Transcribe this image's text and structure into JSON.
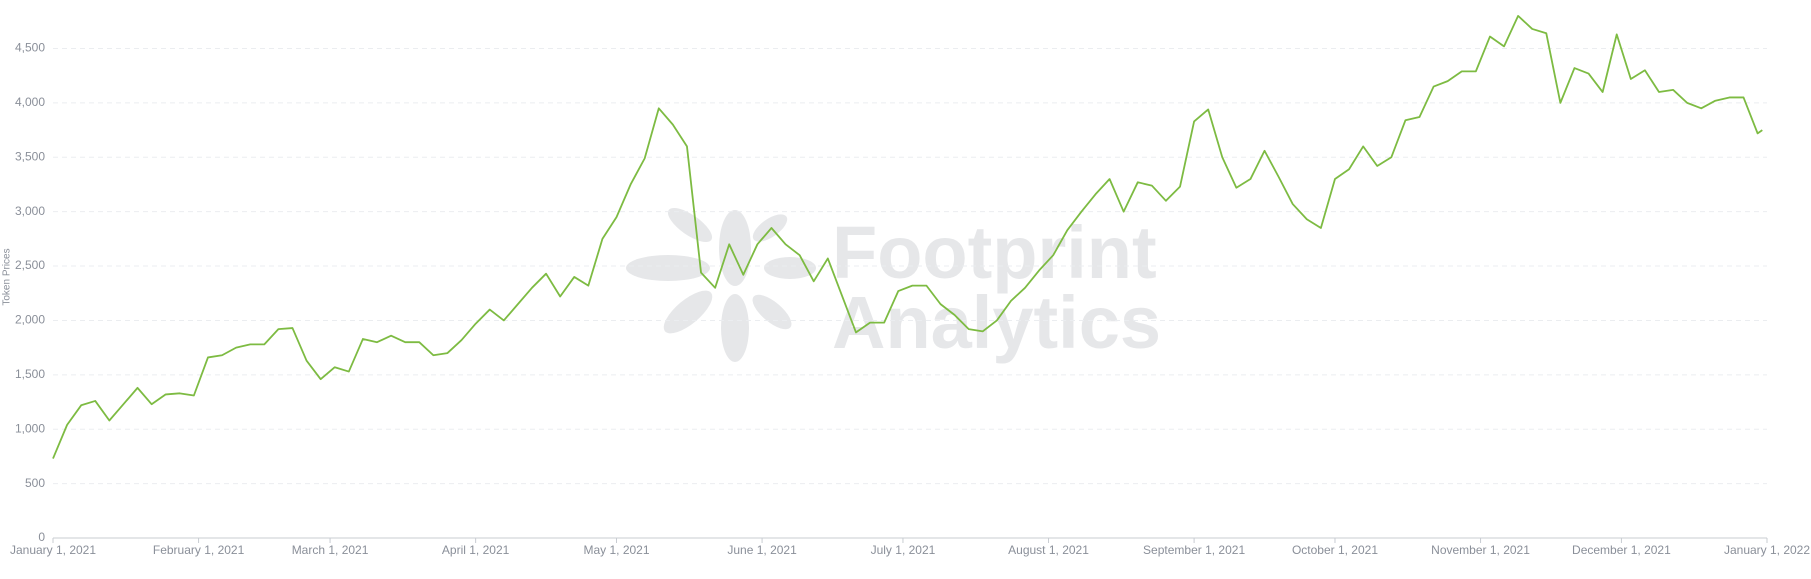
{
  "chart_data": {
    "type": "line",
    "ylabel": "Token Prices",
    "watermark": [
      "Footprint",
      "Analytics"
    ],
    "x": [
      "2021-01-01",
      "2021-01-04",
      "2021-01-07",
      "2021-01-10",
      "2021-01-13",
      "2021-01-16",
      "2021-01-19",
      "2021-01-22",
      "2021-01-25",
      "2021-01-28",
      "2021-01-31",
      "2021-02-03",
      "2021-02-06",
      "2021-02-09",
      "2021-02-12",
      "2021-02-15",
      "2021-02-18",
      "2021-02-21",
      "2021-02-24",
      "2021-02-27",
      "2021-03-02",
      "2021-03-05",
      "2021-03-08",
      "2021-03-11",
      "2021-03-14",
      "2021-03-17",
      "2021-03-20",
      "2021-03-23",
      "2021-03-26",
      "2021-03-29",
      "2021-04-01",
      "2021-04-04",
      "2021-04-07",
      "2021-04-10",
      "2021-04-13",
      "2021-04-16",
      "2021-04-19",
      "2021-04-22",
      "2021-04-25",
      "2021-04-28",
      "2021-05-01",
      "2021-05-04",
      "2021-05-07",
      "2021-05-10",
      "2021-05-13",
      "2021-05-16",
      "2021-05-19",
      "2021-05-22",
      "2021-05-25",
      "2021-05-28",
      "2021-05-31",
      "2021-06-03",
      "2021-06-06",
      "2021-06-09",
      "2021-06-12",
      "2021-06-15",
      "2021-06-18",
      "2021-06-21",
      "2021-06-24",
      "2021-06-27",
      "2021-06-30",
      "2021-07-03",
      "2021-07-06",
      "2021-07-09",
      "2021-07-12",
      "2021-07-15",
      "2021-07-18",
      "2021-07-21",
      "2021-07-24",
      "2021-07-27",
      "2021-07-30",
      "2021-08-02",
      "2021-08-05",
      "2021-08-08",
      "2021-08-11",
      "2021-08-14",
      "2021-08-17",
      "2021-08-20",
      "2021-08-23",
      "2021-08-26",
      "2021-08-29",
      "2021-09-01",
      "2021-09-04",
      "2021-09-07",
      "2021-09-10",
      "2021-09-13",
      "2021-09-16",
      "2021-09-19",
      "2021-09-22",
      "2021-09-25",
      "2021-09-28",
      "2021-10-01",
      "2021-10-04",
      "2021-10-07",
      "2021-10-10",
      "2021-10-13",
      "2021-10-16",
      "2021-10-19",
      "2021-10-22",
      "2021-10-25",
      "2021-10-28",
      "2021-10-31",
      "2021-11-03",
      "2021-11-06",
      "2021-11-09",
      "2021-11-12",
      "2021-11-15",
      "2021-11-18",
      "2021-11-21",
      "2021-11-24",
      "2021-11-27",
      "2021-11-30",
      "2021-12-03",
      "2021-12-06",
      "2021-12-09",
      "2021-12-12",
      "2021-12-15",
      "2021-12-18",
      "2021-12-21",
      "2021-12-24",
      "2021-12-27",
      "2021-12-30",
      "2021-12-31"
    ],
    "series": [
      {
        "name": "Token Prices",
        "color": "#7dbb42",
        "values": [
          730,
          1040,
          1220,
          1260,
          1080,
          1230,
          1380,
          1230,
          1320,
          1330,
          1310,
          1660,
          1680,
          1750,
          1780,
          1780,
          1920,
          1930,
          1630,
          1460,
          1570,
          1530,
          1830,
          1800,
          1860,
          1800,
          1800,
          1680,
          1700,
          1820,
          1970,
          2100,
          2000,
          2150,
          2300,
          2430,
          2220,
          2400,
          2320,
          2750,
          2950,
          3250,
          3490,
          3950,
          3800,
          3600,
          2440,
          2300,
          2700,
          2420,
          2700,
          2850,
          2700,
          2600,
          2360,
          2570,
          2230,
          1890,
          1980,
          1980,
          2270,
          2320,
          2320,
          2150,
          2050,
          1920,
          1900,
          2000,
          2180,
          2300,
          2460,
          2600,
          2830,
          3000,
          3160,
          3300,
          3000,
          3270,
          3240,
          3100,
          3230,
          3830,
          3940,
          3500,
          3220,
          3300,
          3560,
          3320,
          3070,
          2930,
          2850,
          3300,
          3390,
          3600,
          3420,
          3500,
          3840,
          3870,
          4150,
          4200,
          4290,
          4290,
          4610,
          4520,
          4800,
          4680,
          4640,
          4000,
          4320,
          4270,
          4100,
          4630,
          4220,
          4300,
          4100,
          4120,
          4000,
          3950,
          4020,
          4050,
          4050,
          3720,
          3750
        ]
      }
    ],
    "xlim": [
      "2021-01-01",
      "2022-01-01"
    ],
    "xticks": [
      {
        "value": "2021-01-01",
        "label": "January 1, 2021"
      },
      {
        "value": "2021-02-01",
        "label": "February 1, 2021"
      },
      {
        "value": "2021-03-01",
        "label": "March 1, 2021"
      },
      {
        "value": "2021-04-01",
        "label": "April 1, 2021"
      },
      {
        "value": "2021-05-01",
        "label": "May 1, 2021"
      },
      {
        "value": "2021-06-01",
        "label": "June 1, 2021"
      },
      {
        "value": "2021-07-01",
        "label": "July 1, 2021"
      },
      {
        "value": "2021-08-01",
        "label": "August 1, 2021"
      },
      {
        "value": "2021-09-01",
        "label": "September 1, 2021"
      },
      {
        "value": "2021-10-01",
        "label": "October 1, 2021"
      },
      {
        "value": "2021-11-01",
        "label": "November 1, 2021"
      },
      {
        "value": "2021-12-01",
        "label": "December 1, 2021"
      },
      {
        "value": "2022-01-01",
        "label": "January 1, 2022"
      }
    ],
    "ylim": [
      0,
      4900
    ],
    "yticks": [
      0,
      500,
      {
        "value": 1000,
        "label": "1,000"
      },
      {
        "value": 1500,
        "label": "1,500"
      },
      {
        "value": 2000,
        "label": "2,000"
      },
      {
        "value": 2500,
        "label": "2,500"
      },
      {
        "value": 3000,
        "label": "3,000"
      },
      {
        "value": 3500,
        "label": "3,500"
      },
      {
        "value": 4000,
        "label": "4,000"
      },
      {
        "value": 4500,
        "label": "4,500"
      }
    ],
    "grid": true
  }
}
